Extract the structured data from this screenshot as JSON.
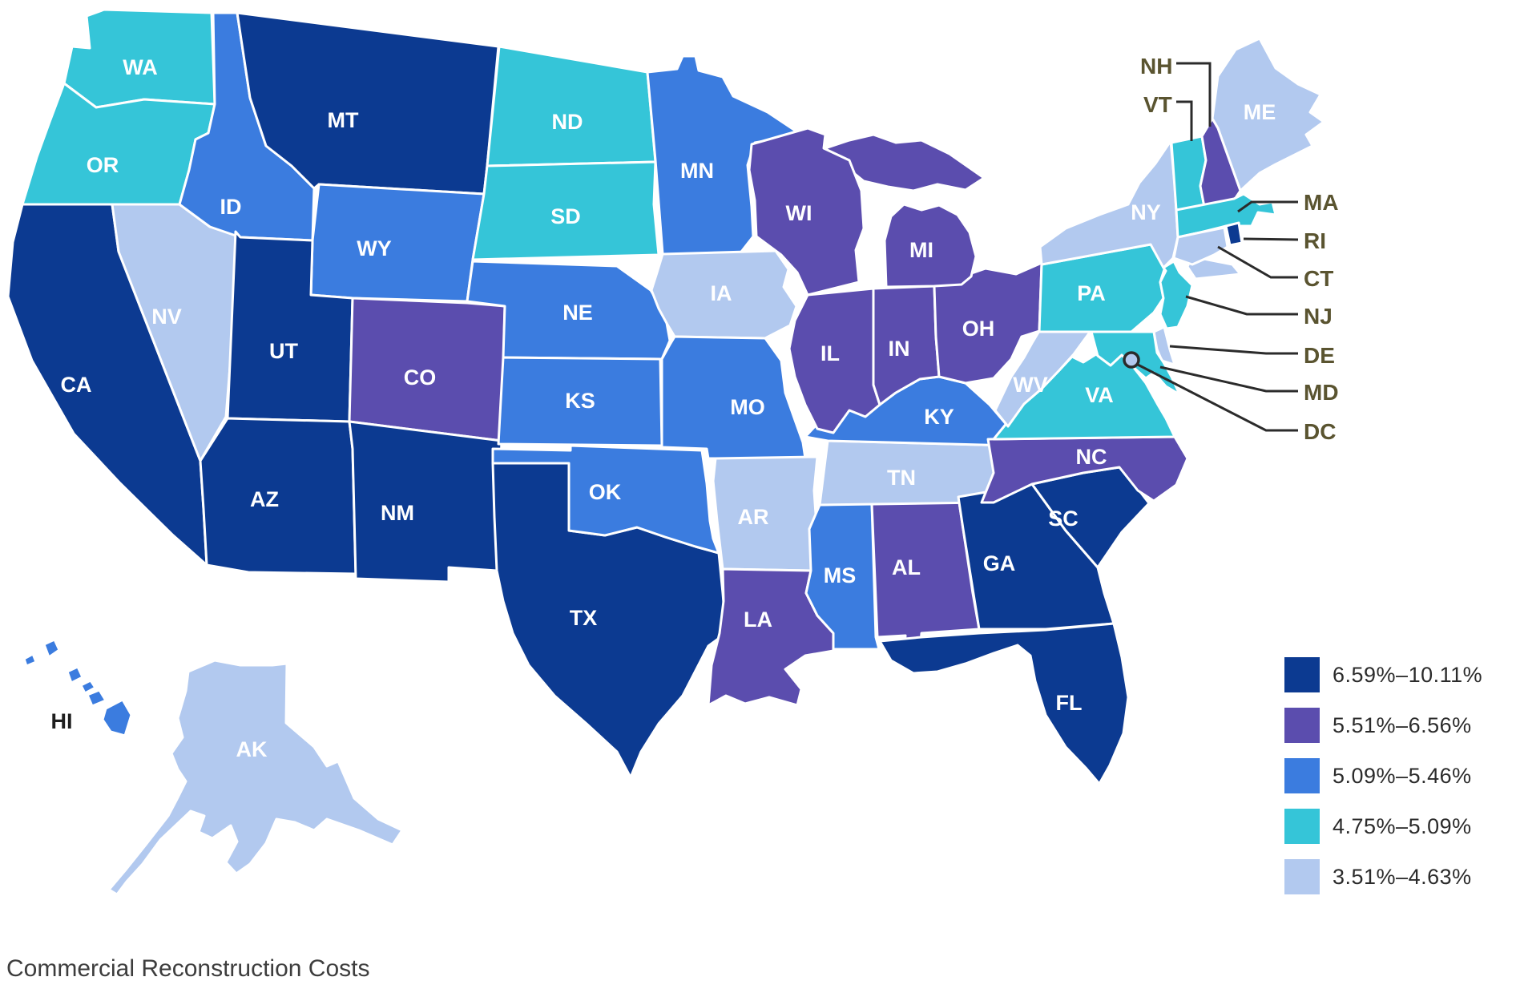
{
  "title": "Commercial Reconstruction Costs",
  "categories": {
    "c1": {
      "label": "6.59%–10.11%",
      "color": "#0C3A91"
    },
    "c2": {
      "label": "5.51%–6.56%",
      "color": "#5B4DAE"
    },
    "c3": {
      "label": "5.09%–5.46%",
      "color": "#3B7CDF"
    },
    "c4": {
      "label": "4.75%–5.09%",
      "color": "#35C5D8"
    },
    "c5": {
      "label": "3.51%–4.63%",
      "color": "#B2C9EF"
    }
  },
  "legend": {
    "items": [
      {
        "range": "6.59%–10.11%",
        "category": "c1"
      },
      {
        "range": "5.51%–6.56%",
        "category": "c2"
      },
      {
        "range": "5.09%–5.46%",
        "category": "c3"
      },
      {
        "range": "4.75%–5.09%",
        "category": "c4"
      },
      {
        "range": "3.51%–4.63%",
        "category": "c5"
      }
    ]
  },
  "map": {
    "state_label_color": "#FFFFFF",
    "outside_label_color": "#1E1E1E",
    "callout_label_color": "#5A5430",
    "callout_line_color": "#2B2B2B",
    "states": [
      {
        "abbr": "WA",
        "category": "c4"
      },
      {
        "abbr": "OR",
        "category": "c4"
      },
      {
        "abbr": "CA",
        "category": "c1"
      },
      {
        "abbr": "NV",
        "category": "c5"
      },
      {
        "abbr": "ID",
        "category": "c3"
      },
      {
        "abbr": "MT",
        "category": "c1"
      },
      {
        "abbr": "WY",
        "category": "c3"
      },
      {
        "abbr": "UT",
        "category": "c1"
      },
      {
        "abbr": "CO",
        "category": "c2"
      },
      {
        "abbr": "AZ",
        "category": "c1"
      },
      {
        "abbr": "NM",
        "category": "c1"
      },
      {
        "abbr": "TX",
        "category": "c1"
      },
      {
        "abbr": "ND",
        "category": "c4"
      },
      {
        "abbr": "SD",
        "category": "c4"
      },
      {
        "abbr": "NE",
        "category": "c3"
      },
      {
        "abbr": "KS",
        "category": "c3"
      },
      {
        "abbr": "OK",
        "category": "c3"
      },
      {
        "abbr": "MN",
        "category": "c3"
      },
      {
        "abbr": "IA",
        "category": "c5"
      },
      {
        "abbr": "MO",
        "category": "c3"
      },
      {
        "abbr": "AR",
        "category": "c5"
      },
      {
        "abbr": "LA",
        "category": "c2"
      },
      {
        "abbr": "MS",
        "category": "c3"
      },
      {
        "abbr": "AL",
        "category": "c2"
      },
      {
        "abbr": "TN",
        "category": "c5"
      },
      {
        "abbr": "KY",
        "category": "c3"
      },
      {
        "abbr": "IL",
        "category": "c2"
      },
      {
        "abbr": "IN",
        "category": "c2"
      },
      {
        "abbr": "OH",
        "category": "c2"
      },
      {
        "abbr": "MI",
        "category": "c2"
      },
      {
        "abbr": "WI",
        "category": "c2"
      },
      {
        "abbr": "GA",
        "category": "c1"
      },
      {
        "abbr": "SC",
        "category": "c1"
      },
      {
        "abbr": "NC",
        "category": "c2"
      },
      {
        "abbr": "VA",
        "category": "c4"
      },
      {
        "abbr": "WV",
        "category": "c5"
      },
      {
        "abbr": "PA",
        "category": "c4"
      },
      {
        "abbr": "NY",
        "category": "c5"
      },
      {
        "abbr": "NJ",
        "category": "c4"
      },
      {
        "abbr": "DE",
        "category": "c5"
      },
      {
        "abbr": "MD",
        "category": "c4"
      },
      {
        "abbr": "ME",
        "category": "c5"
      },
      {
        "abbr": "VT",
        "category": "c4"
      },
      {
        "abbr": "NH",
        "category": "c2"
      },
      {
        "abbr": "MA",
        "category": "c4"
      },
      {
        "abbr": "RI",
        "category": "c1"
      },
      {
        "abbr": "CT",
        "category": "c5"
      },
      {
        "abbr": "FL",
        "category": "c1"
      },
      {
        "abbr": "HI",
        "category": "c3"
      },
      {
        "abbr": "AK",
        "category": "c5"
      }
    ],
    "dc": {
      "abbr": "DC",
      "category": "c5"
    },
    "callouts": [
      {
        "abbr": "NH"
      },
      {
        "abbr": "VT"
      },
      {
        "abbr": "MA"
      },
      {
        "abbr": "RI"
      },
      {
        "abbr": "CT"
      },
      {
        "abbr": "NJ"
      },
      {
        "abbr": "DE"
      },
      {
        "abbr": "MD"
      },
      {
        "abbr": "DC"
      }
    ]
  }
}
